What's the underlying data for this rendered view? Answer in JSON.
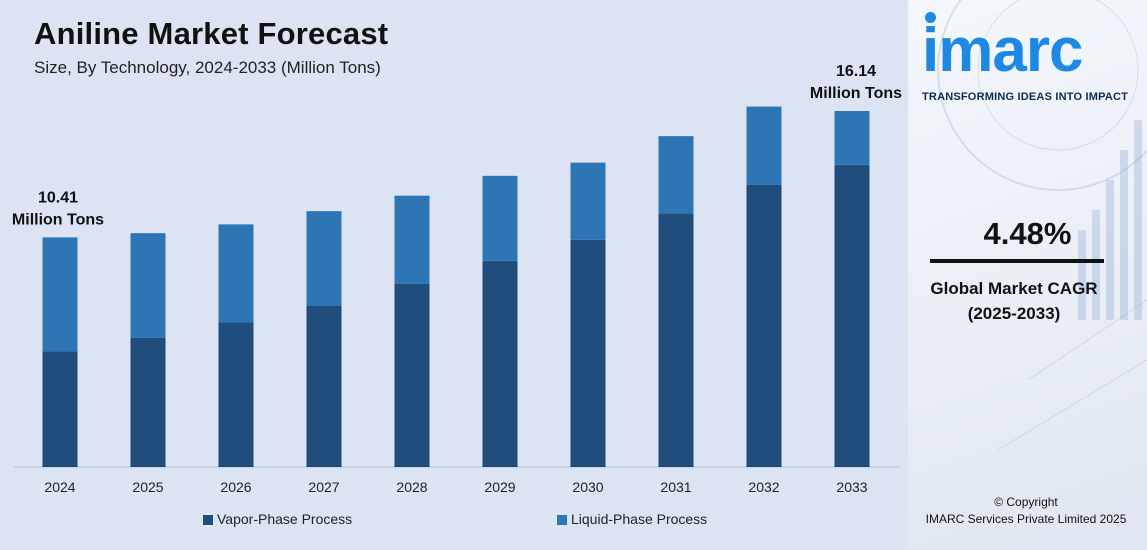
{
  "header": {
    "title": "Aniline Market Forecast",
    "subtitle": "Size, By Technology, 2024-2033 (Million Tons)"
  },
  "chart_data": {
    "type": "bar",
    "stacked": true,
    "categories": [
      "2024",
      "2025",
      "2026",
      "2027",
      "2028",
      "2029",
      "2030",
      "2031",
      "2032",
      "2033"
    ],
    "series": [
      {
        "name": "Vapor-Phase Process",
        "color": "#1f4e7e",
        "values": [
          5.25,
          5.85,
          6.55,
          7.3,
          8.3,
          9.35,
          10.3,
          11.5,
          12.8,
          13.7
        ]
      },
      {
        "name": "Liquid-Phase Process",
        "color": "#2e75b6",
        "values": [
          5.16,
          4.75,
          4.45,
          4.3,
          4.0,
          3.85,
          3.5,
          3.5,
          3.54,
          2.44
        ]
      }
    ],
    "annotations": [
      {
        "category": "2024",
        "line1": "10.41",
        "line2": "Million Tons"
      },
      {
        "category": "2033",
        "line1": "16.14",
        "line2": "Million Tons"
      }
    ],
    "ylim": [
      0,
      16.14
    ],
    "grid": false,
    "legend_position": "bottom"
  },
  "side_panel": {
    "logo_text": "imarc",
    "tagline": "TRANSFORMING IDEAS INTO IMPACT",
    "cagr_value": "4.48%",
    "cagr_label_line1": "Global Market CAGR",
    "cagr_label_line2": "(2025-2033)",
    "copyright_line1": "© Copyright",
    "copyright_line2": "IMARC Services Private Limited 2025"
  }
}
